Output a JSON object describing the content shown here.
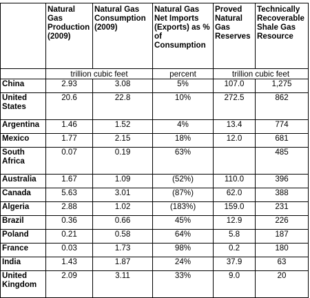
{
  "table": {
    "headers": [
      "",
      "Natural Gas Production (2009)",
      "Natural Gas Consumption (2009)",
      "Natural Gas Net Imports (Exports) as % of Consumption",
      "Proved Natural Gas Reserves",
      "Technically Recoverable Shale Gas Resource"
    ],
    "units": {
      "production_consumption": "trillion cubic feet",
      "net_imports": "percent",
      "reserves_resource": "trillion cubic feet"
    },
    "rows": [
      {
        "country": "China",
        "production": "2.93",
        "consumption": "3.08",
        "net_imports": "5%",
        "reserves": "107.0",
        "shale": "1,275"
      },
      {
        "country": "United States",
        "production": "20.6",
        "consumption": "22.8",
        "net_imports": "10%",
        "reserves": "272.5",
        "shale": "862"
      },
      {
        "country": "Argentina",
        "production": "1.46",
        "consumption": "1.52",
        "net_imports": "4%",
        "reserves": "13.4",
        "shale": "774"
      },
      {
        "country": "Mexico",
        "production": "1.77",
        "consumption": "2.15",
        "net_imports": "18%",
        "reserves": "12.0",
        "shale": "681"
      },
      {
        "country": "South Africa",
        "production": "0.07",
        "consumption": "0.19",
        "net_imports": "63%",
        "reserves": "",
        "shale": "485"
      },
      {
        "country": "Australia",
        "production": "1.67",
        "consumption": "1.09",
        "net_imports": "(52%)",
        "reserves": "110.0",
        "shale": "396"
      },
      {
        "country": "Canada",
        "production": "5.63",
        "consumption": "3.01",
        "net_imports": "(87%)",
        "reserves": "62.0",
        "shale": "388"
      },
      {
        "country": "Algeria",
        "production": "2.88",
        "consumption": "1.02",
        "net_imports": "(183%)",
        "reserves": "159.0",
        "shale": "231"
      },
      {
        "country": "Brazil",
        "production": "0.36",
        "consumption": "0.66",
        "net_imports": "45%",
        "reserves": "12.9",
        "shale": "226"
      },
      {
        "country": "Poland",
        "production": "0.21",
        "consumption": "0.58",
        "net_imports": "64%",
        "reserves": "5.8",
        "shale": "187"
      },
      {
        "country": "France",
        "production": "0.03",
        "consumption": "1.73",
        "net_imports": "98%",
        "reserves": "0.2",
        "shale": "180"
      },
      {
        "country": "India",
        "production": "1.43",
        "consumption": "1.87",
        "net_imports": "24%",
        "reserves": "37.9",
        "shale": "63"
      },
      {
        "country": "United Kingdom",
        "production": "2.09",
        "consumption": "3.11",
        "net_imports": "33%",
        "reserves": "9.0",
        "shale": "20"
      }
    ]
  }
}
